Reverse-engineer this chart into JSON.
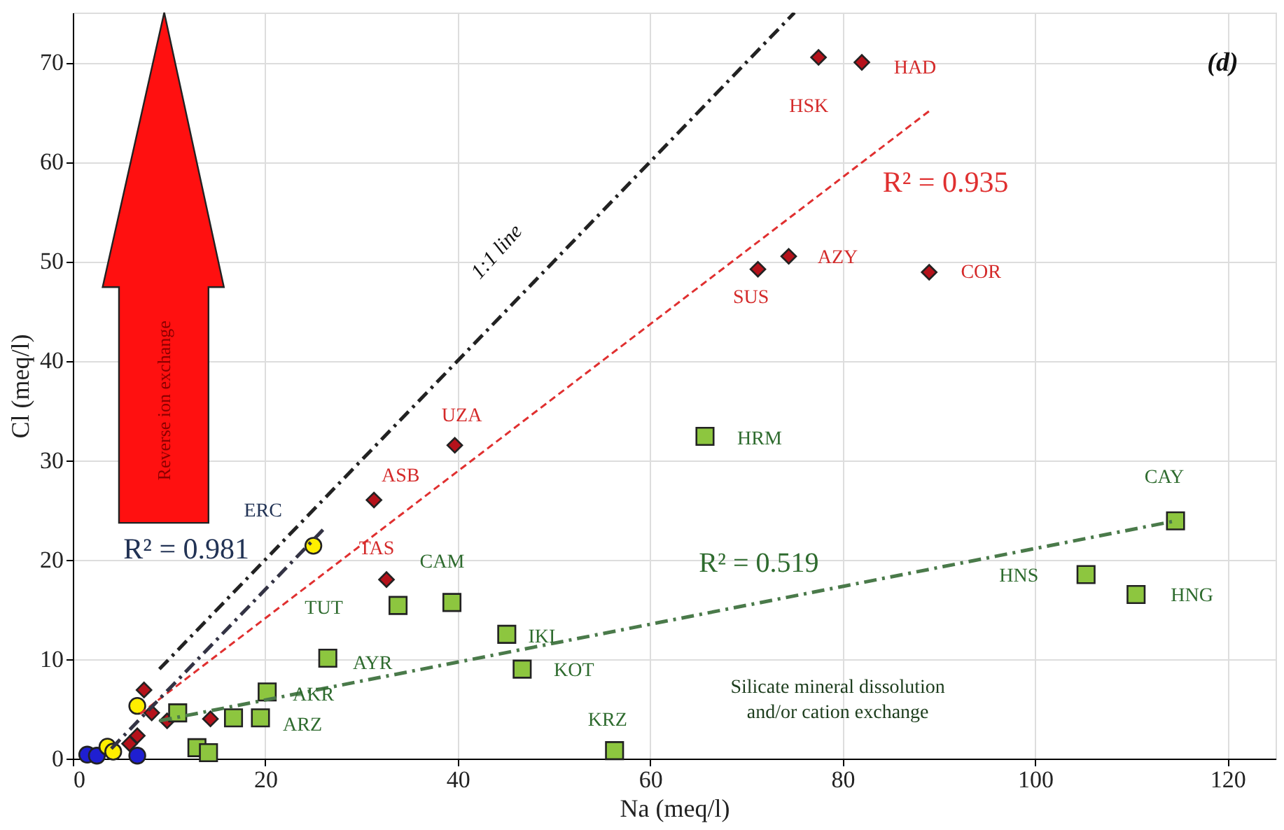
{
  "chart_data": {
    "type": "scatter",
    "xlabel": "Na (meq/l)",
    "ylabel": "Cl (meq/l)",
    "xlim": [
      0,
      125
    ],
    "ylim": [
      0,
      75
    ],
    "xticks": [
      0,
      20,
      40,
      60,
      80,
      100,
      120
    ],
    "yticks": [
      0,
      10,
      20,
      30,
      40,
      50,
      60,
      70
    ],
    "grid": true,
    "series": [
      {
        "marker": "diamond",
        "color": "#b5121b",
        "x": [
          77.5,
          82.0,
          71.2,
          74.4,
          89.0,
          39.7,
          31.3,
          32.6,
          14.3,
          7.4,
          8.2,
          9.8,
          6.7,
          5.9
        ],
        "values": [
          70.5,
          70.0,
          49.2,
          50.5,
          48.9,
          31.5,
          26.0,
          18.0,
          4.0,
          6.9,
          4.6,
          3.8,
          2.3,
          1.5
        ]
      },
      {
        "marker": "square",
        "color": "#8dc63f",
        "x": [
          65.7,
          114.6,
          105.3,
          110.5,
          39.4,
          33.8,
          45.1,
          46.7,
          26.5,
          20.2,
          19.5,
          16.7,
          10.9,
          12.9,
          14.1,
          56.3
        ],
        "values": [
          32.4,
          23.9,
          18.5,
          16.5,
          15.7,
          15.4,
          12.5,
          9.0,
          10.1,
          6.7,
          4.1,
          4.1,
          4.6,
          1.1,
          0.6,
          0.8
        ]
      },
      {
        "marker": "circle",
        "color": "#1f1fd0",
        "x": [
          1.5,
          2.5,
          6.7
        ],
        "values": [
          0.4,
          0.3,
          0.3
        ]
      },
      {
        "marker": "circle",
        "color": "#ffee00",
        "x": [
          25.0,
          3.6,
          4.2,
          6.7
        ],
        "values": [
          21.4,
          1.2,
          0.7,
          5.3
        ]
      },
      {
        "type": "line",
        "line_style": "dashed",
        "color": "#222222",
        "x": [
          9,
          75
        ],
        "values": [
          9,
          75
        ]
      },
      {
        "type": "line",
        "line_style": "dotted",
        "color": "#e03030",
        "x": [
          7,
          89
        ],
        "values": [
          4.5,
          65.1
        ]
      },
      {
        "type": "line",
        "line_style": "dashed",
        "color": "#333344",
        "x": [
          4,
          26
        ],
        "values": [
          1,
          23
        ]
      },
      {
        "type": "line",
        "line_style": "dashed",
        "color": "#4a7a4a",
        "x": [
          9,
          114.6
        ],
        "values": [
          3.8,
          23.9
        ]
      }
    ],
    "annotations": [
      {
        "text": "HSK",
        "x": 77.5,
        "y": 70.5
      },
      {
        "text": "HAD",
        "x": 82.0,
        "y": 70.0
      },
      {
        "text": "SUS",
        "x": 71.2,
        "y": 49.2
      },
      {
        "text": "AZY",
        "x": 74.4,
        "y": 50.5
      },
      {
        "text": "COR",
        "x": 89.0,
        "y": 48.9
      },
      {
        "text": "UZA",
        "x": 39.7,
        "y": 31.5
      },
      {
        "text": "ASB",
        "x": 31.3,
        "y": 26.0
      },
      {
        "text": "TAS",
        "x": 32.6,
        "y": 18.0
      },
      {
        "text": "HRM",
        "x": 65.7,
        "y": 32.4
      },
      {
        "text": "CAY",
        "x": 114.6,
        "y": 23.9
      },
      {
        "text": "HNS",
        "x": 105.3,
        "y": 18.5
      },
      {
        "text": "HNG",
        "x": 110.5,
        "y": 16.5
      },
      {
        "text": "CAM",
        "x": 39.4,
        "y": 15.7
      },
      {
        "text": "TUT",
        "x": 33.8,
        "y": 15.4
      },
      {
        "text": "IKI",
        "x": 45.1,
        "y": 12.5
      },
      {
        "text": "KOT",
        "x": 46.7,
        "y": 9.0
      },
      {
        "text": "AYR",
        "x": 26.5,
        "y": 10.1
      },
      {
        "text": "AKR",
        "x": 20.2,
        "y": 6.7
      },
      {
        "text": "ARZ",
        "x": 19.5,
        "y": 4.1
      },
      {
        "text": "KRZ",
        "x": 56.3,
        "y": 0.8
      },
      {
        "text": "ERC",
        "x": 25.0,
        "y": 21.4
      },
      "R² = 0.935",
      "R² = 0.981",
      "R² = 0.519",
      "1:1 line",
      "(d)",
      "Reverse ion exchange",
      "Silicate mineral dissolution\nand/or cation exchange"
    ]
  }
}
